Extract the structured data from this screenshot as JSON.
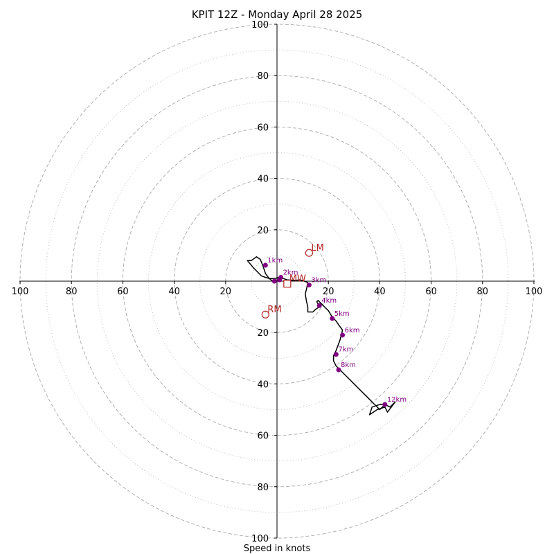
{
  "chart_data": {
    "type": "hodograph",
    "title": "KPIT 12Z - Monday April 28 2025",
    "xlabel": "Speed in knots",
    "range": [
      -100,
      100
    ],
    "ring_major": [
      20,
      40,
      60,
      80,
      100
    ],
    "ring_minor": [
      10,
      30,
      50,
      70,
      90
    ],
    "ticks": [
      {
        "label": "100",
        "v": -100
      },
      {
        "label": "80",
        "v": -80
      },
      {
        "label": "60",
        "v": -60
      },
      {
        "label": "40",
        "v": -40
      },
      {
        "label": "20",
        "v": -20
      },
      {
        "label": "20",
        "v": 20
      },
      {
        "label": "40",
        "v": 40
      },
      {
        "label": "60",
        "v": 60
      },
      {
        "label": "80",
        "v": 80
      },
      {
        "label": "100",
        "v": 100
      }
    ],
    "trace": [
      [
        -1,
        -0.5
      ],
      [
        -3,
        1
      ],
      [
        -4.5,
        3
      ],
      [
        -5.5,
        6
      ],
      [
        -6.5,
        8.5
      ],
      [
        -8,
        9.5
      ],
      [
        -10,
        8
      ],
      [
        -11.5,
        8
      ],
      [
        -9,
        5
      ],
      [
        -6,
        2
      ],
      [
        -3,
        1
      ],
      [
        -1,
        1
      ],
      [
        1,
        1.5
      ],
      [
        4,
        0.5
      ],
      [
        7,
        0.3
      ],
      [
        9,
        0.5
      ],
      [
        10,
        0.2
      ],
      [
        12,
        -0.5
      ],
      [
        11.5,
        -3
      ],
      [
        11,
        -5
      ],
      [
        11.5,
        -8
      ],
      [
        12,
        -10
      ],
      [
        12,
        -12
      ],
      [
        14,
        -12
      ],
      [
        15,
        -11
      ],
      [
        16.5,
        -10
      ],
      [
        15.5,
        -8
      ],
      [
        16,
        -7.5
      ],
      [
        17.5,
        -9
      ],
      [
        20,
        -11.5
      ],
      [
        21.5,
        -14
      ],
      [
        23,
        -15.5
      ],
      [
        24,
        -17
      ],
      [
        25.5,
        -19
      ],
      [
        25,
        -21
      ],
      [
        24.5,
        -23
      ],
      [
        23,
        -27
      ],
      [
        22,
        -29
      ],
      [
        22,
        -31
      ],
      [
        23,
        -33
      ],
      [
        24,
        -34
      ],
      [
        28,
        -38
      ],
      [
        32,
        -42
      ],
      [
        36,
        -46
      ],
      [
        40,
        -50
      ],
      [
        42,
        -48
      ],
      [
        44,
        -49
      ],
      [
        46,
        -47
      ],
      [
        43,
        -51
      ],
      [
        42,
        -49
      ],
      [
        39,
        -50
      ],
      [
        36,
        -52
      ],
      [
        37,
        -49
      ],
      [
        40,
        -48
      ],
      [
        42,
        -48
      ]
    ],
    "height_labels": [
      {
        "label": "1km",
        "u": -4.5,
        "v": 6.2
      },
      {
        "label": "2km",
        "u": 1.5,
        "v": 1.5
      },
      {
        "label": "3km",
        "u": 12.5,
        "v": -1.5
      },
      {
        "label": "4km",
        "u": 16.5,
        "v": -9.5
      },
      {
        "label": "5km",
        "u": 21.5,
        "v": -14.5
      },
      {
        "label": "6km",
        "u": 25.5,
        "v": -21
      },
      {
        "label": "7km",
        "u": 23,
        "v": -28.5
      },
      {
        "label": "8km",
        "u": 24,
        "v": -34.5
      },
      {
        "label": "12km",
        "u": 42,
        "v": -48
      }
    ],
    "extra_points": [
      {
        "u": -1,
        "v": 0
      },
      {
        "u": 1,
        "v": 0.5
      }
    ],
    "motions": [
      {
        "label": "LM",
        "u": 12.5,
        "v": 11,
        "marker": "circle"
      },
      {
        "label": "MW",
        "u": 4,
        "v": -1,
        "marker": "square"
      },
      {
        "label": "RM",
        "u": -4.5,
        "v": -13,
        "marker": "circle"
      }
    ],
    "colors": {
      "trace": "#000000",
      "height_points": "#800080",
      "motion": "#b22222",
      "grid": "#b0b0b0"
    }
  }
}
